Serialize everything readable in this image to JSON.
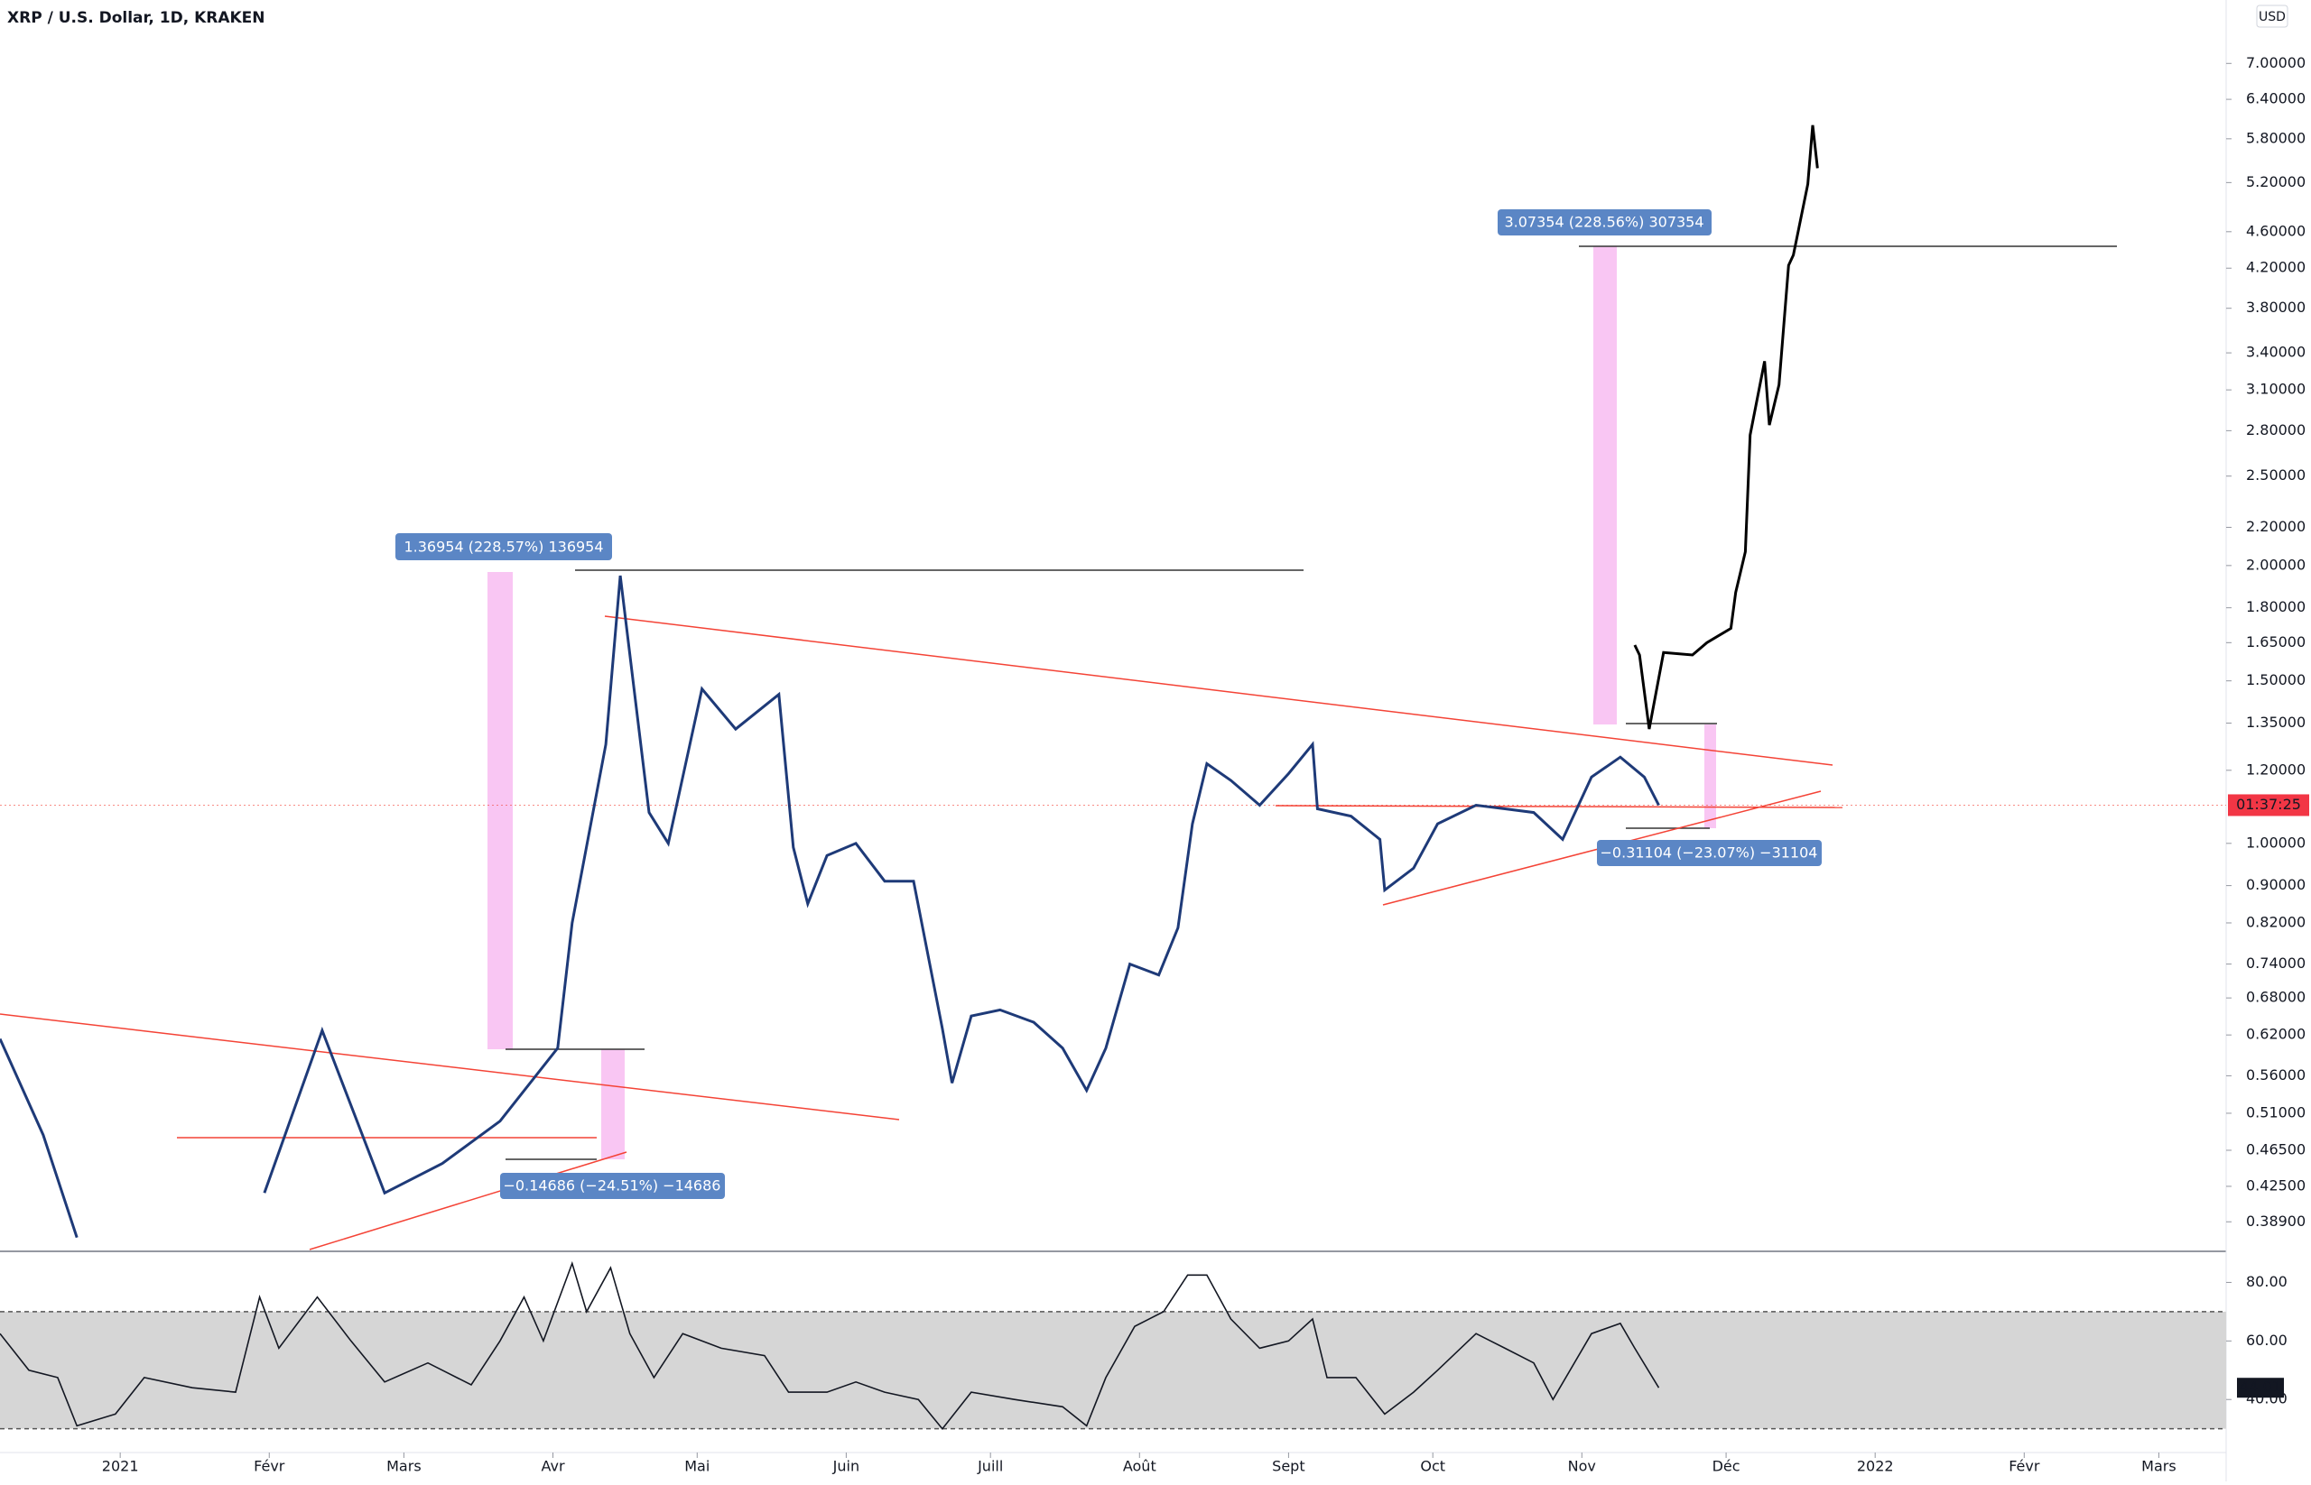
{
  "chart_data": [
    {
      "type": "line",
      "title": "XRP / U.S. Dollar, 1D, KRAKEN",
      "log_scale": true,
      "ylim": [
        0.363,
        8.2
      ],
      "xlim": [
        -25,
        438
      ],
      "yticks": [
        {
          "value": 0.389,
          "label": "0.38900"
        },
        {
          "value": 0.425,
          "label": "0.42500"
        },
        {
          "value": 0.465,
          "label": "0.46500"
        },
        {
          "value": 0.51,
          "label": "0.51000"
        },
        {
          "value": 0.56,
          "label": "0.56000"
        },
        {
          "value": 0.62,
          "label": "0.62000"
        },
        {
          "value": 0.68,
          "label": "0.68000"
        },
        {
          "value": 0.74,
          "label": "0.74000"
        },
        {
          "value": 0.82,
          "label": "0.82000"
        },
        {
          "value": 0.9,
          "label": "0.90000"
        },
        {
          "value": 1.0,
          "label": "1.00000"
        },
        {
          "value": 1.2,
          "label": "1.20000"
        },
        {
          "value": 1.35,
          "label": "1.35000"
        },
        {
          "value": 1.5,
          "label": "1.50000"
        },
        {
          "value": 1.65,
          "label": "1.65000"
        },
        {
          "value": 1.8,
          "label": "1.80000"
        },
        {
          "value": 2.0,
          "label": "2.00000"
        },
        {
          "value": 2.2,
          "label": "2.20000"
        },
        {
          "value": 2.5,
          "label": "2.50000"
        },
        {
          "value": 2.8,
          "label": "2.80000"
        },
        {
          "value": 3.1,
          "label": "3.10000"
        },
        {
          "value": 3.4,
          "label": "3.40000"
        },
        {
          "value": 3.8,
          "label": "3.80000"
        },
        {
          "value": 4.2,
          "label": "4.20000"
        },
        {
          "value": 4.6,
          "label": "4.60000"
        },
        {
          "value": 5.2,
          "label": "5.20000"
        },
        {
          "value": 5.8,
          "label": "5.80000"
        },
        {
          "value": 6.4,
          "label": "6.40000"
        },
        {
          "value": 7.0,
          "label": "7.00000"
        }
      ],
      "xticks": [
        {
          "value": 0,
          "label": "2021"
        },
        {
          "value": 31,
          "label": "Févr"
        },
        {
          "value": 59,
          "label": "Mars"
        },
        {
          "value": 90,
          "label": "Avr"
        },
        {
          "value": 120,
          "label": "Mai"
        },
        {
          "value": 151,
          "label": "Juin"
        },
        {
          "value": 181,
          "label": "Juill"
        },
        {
          "value": 212,
          "label": "Août"
        },
        {
          "value": 243,
          "label": "Sept"
        },
        {
          "value": 273,
          "label": "Oct"
        },
        {
          "value": 304,
          "label": "Nov"
        },
        {
          "value": 334,
          "label": "Déc"
        },
        {
          "value": 365,
          "label": "2022"
        },
        {
          "value": 396,
          "label": "Févr"
        },
        {
          "value": 424,
          "label": "Mars"
        }
      ],
      "currency": "USD",
      "countdown": "01:37:25",
      "last_price": 1.1,
      "annotations": [
        "1.36954 (228.57%) 136954",
        "−0.14686 (−24.51%) −14686",
        "3.07354 (228.56%) 307354",
        "−0.31104 (−23.07%) −31104"
      ],
      "series": [
        {
          "color": "#1e3a78",
          "x": [
            -25,
            -16,
            -9,
            10,
            30,
            42,
            55,
            67,
            79,
            91,
            94,
            101,
            104,
            110,
            114,
            121,
            128,
            137,
            140,
            143,
            147,
            153,
            159,
            165,
            171,
            173,
            177,
            183,
            190,
            196,
            201,
            205,
            210,
            216,
            220,
            223,
            226,
            231,
            237,
            243,
            248,
            249,
            256,
            262,
            263,
            269,
            274,
            282,
            288,
            294,
            300,
            306,
            312,
            317,
            320
          ],
          "values": [
            0.614,
            0.483,
            0.374,
            null,
            0.418,
            0.627,
            0.418,
            0.45,
            0.5,
            0.6,
            0.82,
            1.28,
            1.95,
            1.08,
            1.0,
            1.47,
            1.33,
            1.45,
            0.99,
            0.86,
            0.97,
            1.0,
            0.91,
            0.91,
            0.63,
            0.55,
            0.65,
            0.66,
            0.64,
            0.6,
            0.54,
            0.6,
            0.74,
            0.72,
            0.81,
            1.05,
            1.22,
            1.17,
            1.1,
            1.19,
            1.28,
            1.09,
            1.07,
            1.01,
            0.89,
            0.94,
            1.05,
            1.1,
            1.09,
            1.08,
            1.01,
            1.18,
            1.24,
            1.18,
            1.1
          ]
        },
        {
          "color": "#000000",
          "x": [
            315,
            316,
            318,
            321,
            327,
            330,
            335,
            336,
            338,
            339,
            342,
            343,
            345,
            347,
            348,
            351,
            352,
            353
          ],
          "values": [
            1.64,
            1.6,
            1.33,
            1.61,
            1.6,
            1.65,
            1.71,
            1.87,
            2.07,
            2.77,
            3.33,
            2.84,
            3.14,
            4.23,
            4.34,
            5.18,
            6.0,
            5.39
          ]
        }
      ]
    },
    {
      "type": "line",
      "ylim": [
        22.5,
        90
      ],
      "xlim": [
        -25,
        438
      ],
      "band": [
        30,
        70
      ],
      "yticks": [
        {
          "value": 80,
          "label": "80.00"
        },
        {
          "value": 60,
          "label": "60.00"
        },
        {
          "value": 40,
          "label": "40.00"
        }
      ],
      "current": 44.01,
      "series": [
        {
          "color": "#131722",
          "x": [
            -25,
            -19,
            -13,
            -9,
            -1,
            5,
            15,
            24,
            29,
            33,
            41,
            48,
            55,
            64,
            73,
            79,
            84,
            88,
            94,
            97,
            102,
            106,
            111,
            117,
            125,
            134,
            139,
            147,
            153,
            159,
            166,
            171,
            177,
            186,
            196,
            201,
            205,
            211,
            217,
            222,
            226,
            231,
            237,
            243,
            248,
            251,
            257,
            263,
            269,
            274,
            282,
            288,
            294,
            298,
            306,
            312,
            315,
            320
          ],
          "values": [
            62.5,
            50,
            47.5,
            31,
            35,
            47.5,
            44,
            42.5,
            75,
            57.5,
            75,
            60,
            46,
            52.5,
            45,
            60,
            75,
            60,
            86.5,
            70,
            85,
            62.5,
            47.5,
            62.5,
            57.5,
            55,
            42.5,
            42.5,
            46,
            42.5,
            40,
            30,
            42.5,
            40,
            37.5,
            31,
            47.5,
            65,
            70,
            82.5,
            82.5,
            67.5,
            57.5,
            60,
            67.5,
            47.5,
            47.5,
            35,
            42.5,
            50,
            62.5,
            57.5,
            52.5,
            40,
            62.5,
            66,
            57.5,
            44.01
          ]
        }
      ]
    }
  ]
}
